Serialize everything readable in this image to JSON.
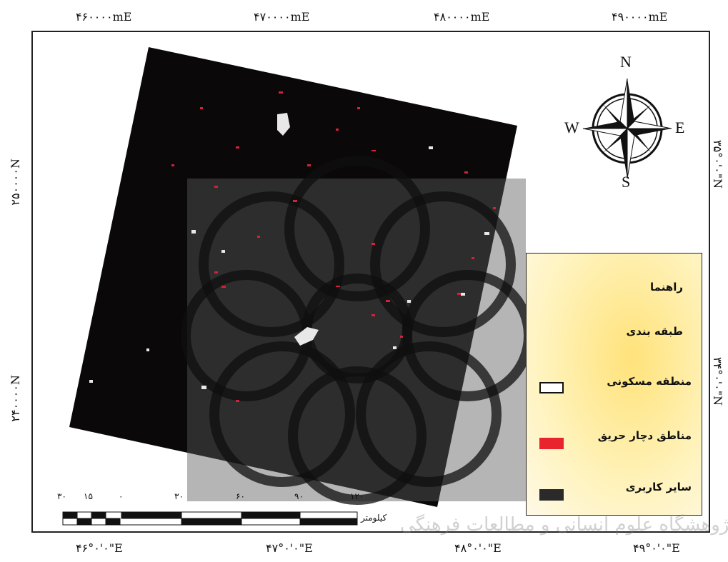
{
  "map": {
    "top_ticks": [
      "۴۶۰۰۰۰mE",
      "۴۷۰۰۰۰mE",
      "۴۸۰۰۰۰mE",
      "۴۹۰۰۰۰mE"
    ],
    "bottom_ticks": [
      "۴۶°۰'۰\"E",
      "۴۷°۰'۰\"E",
      "۴۸°۰'۰\"E",
      "۴۹°۰'۰\"E"
    ],
    "left_ticks": [
      "۲۵۰۰۰۰N",
      "۲۴۰۰۰۰N"
    ],
    "right_ticks": [
      "۳۵°۰'۰\"N",
      "۳۴°۰'۰\"N"
    ]
  },
  "compass": {
    "north": "N",
    "south": "S",
    "east": "E",
    "west": "W"
  },
  "legend": {
    "title": "راهنما",
    "subtitle": "طبقه بندی",
    "items": [
      {
        "label": "منطقه مسکونی",
        "color": "#ffffff"
      },
      {
        "label": "مناطق دچار حریق",
        "color": "#e8242c"
      },
      {
        "label": "سایر کاربری",
        "color": "#2a2a2a"
      }
    ]
  },
  "scalebar": {
    "labels": [
      "۳۰",
      "۱۵",
      "۰",
      "۳۰",
      "۶۰",
      "۹۰",
      "۱۲۰"
    ],
    "unit": "کیلومتر"
  },
  "watermark": "پژوهشگاه علوم انسانی و مطالعات فرهنگی"
}
